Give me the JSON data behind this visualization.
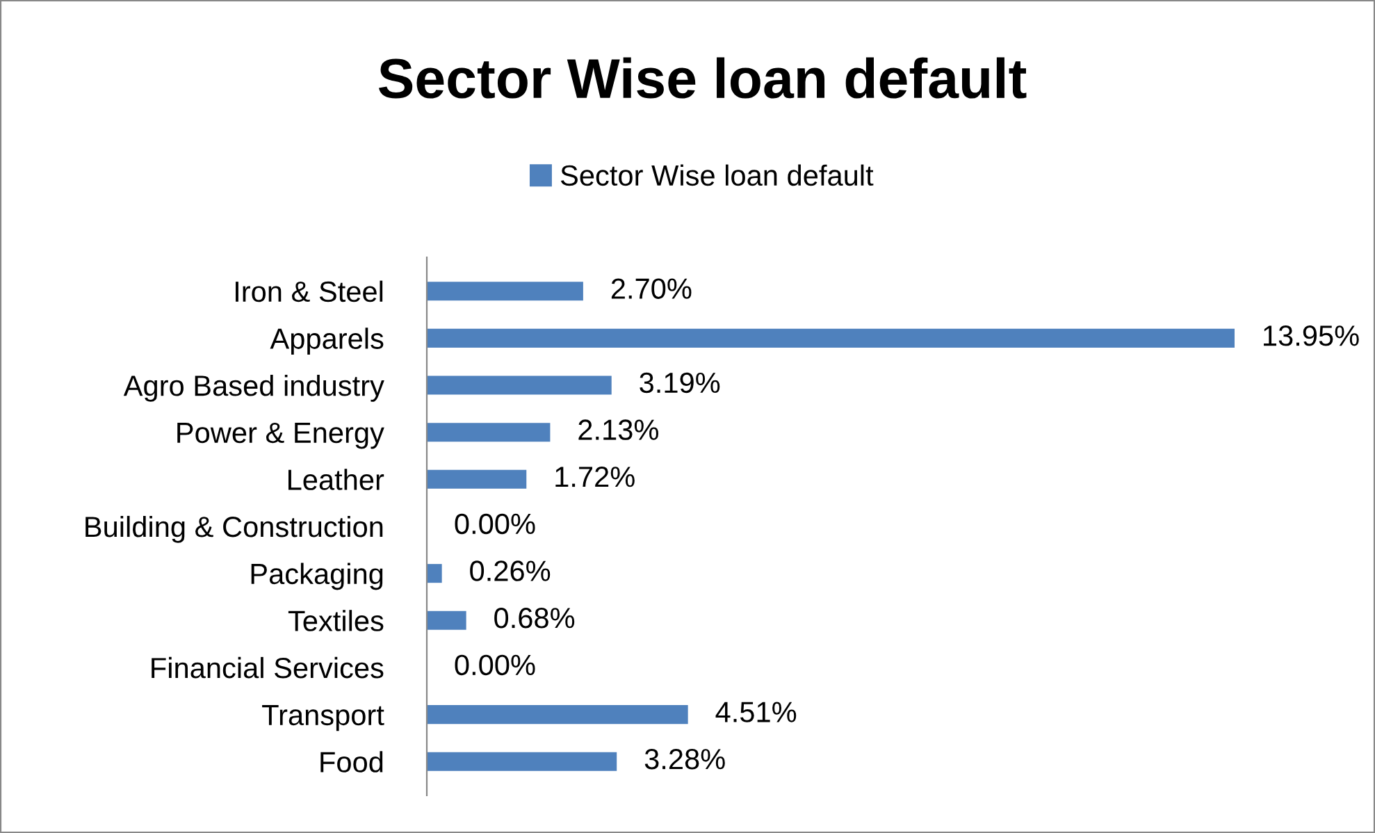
{
  "chart_data": {
    "type": "bar",
    "orientation": "horizontal",
    "title": "Sector Wise loan default",
    "categories": [
      "Iron & Steel",
      "Apparels",
      "Agro Based industry",
      "Power & Energy",
      "Leather",
      "Building & Construction",
      "Packaging",
      "Textiles",
      "Financial Services",
      "Transport",
      "Food"
    ],
    "series": [
      {
        "name": "Sector Wise loan default",
        "color": "#4f81bd",
        "values": [
          2.7,
          13.95,
          3.19,
          2.13,
          1.72,
          0.0,
          0.26,
          0.68,
          0.0,
          4.51,
          3.28
        ],
        "value_labels": [
          "2.70%",
          "13.95%",
          "3.19%",
          "2.13%",
          "1.72%",
          "0.00%",
          "0.26%",
          "0.68%",
          "0.00%",
          "4.51%",
          "3.28%"
        ]
      }
    ],
    "legend": "top",
    "grid": false,
    "tick_labels": "y"
  }
}
